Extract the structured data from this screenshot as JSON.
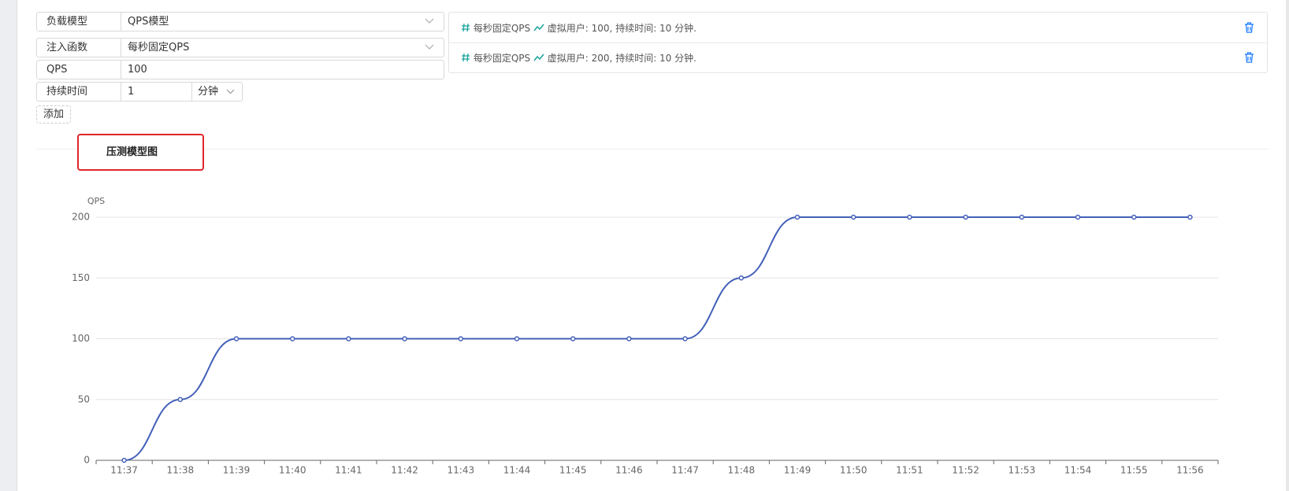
{
  "form": {
    "rows": [
      {
        "label": "负载模型",
        "value": "QPS模型"
      },
      {
        "label": "注入函数",
        "value": "每秒固定QPS"
      },
      {
        "label": "QPS",
        "value": "100"
      },
      {
        "label": "持续时间",
        "value": "1",
        "unit": "分钟"
      }
    ],
    "add_button": "添加"
  },
  "stages": [
    {
      "name": "每秒固定QPS",
      "detail": "虚拟用户: 100, 持续时间: 10 分钟."
    },
    {
      "name": "每秒固定QPS",
      "detail": "虚拟用户: 200, 持续时间: 10 分钟."
    }
  ],
  "tab": "压测模型图",
  "chart_data": {
    "type": "line",
    "y_label": "QPS",
    "categories": [
      "11:37",
      "11:38",
      "11:39",
      "11:40",
      "11:41",
      "11:42",
      "11:43",
      "11:44",
      "11:45",
      "11:46",
      "11:47",
      "11:48",
      "11:49",
      "11:50",
      "11:51",
      "11:52",
      "11:53",
      "11:54",
      "11:55",
      "11:56"
    ],
    "values": [
      0,
      50,
      100,
      100,
      100,
      100,
      100,
      100,
      100,
      100,
      100,
      150,
      200,
      200,
      200,
      200,
      200,
      200,
      200,
      200
    ],
    "color": "#4360b8",
    "ylim": [
      0,
      200
    ],
    "yticks": [
      0,
      50,
      100,
      150,
      200
    ],
    "grid": true
  }
}
